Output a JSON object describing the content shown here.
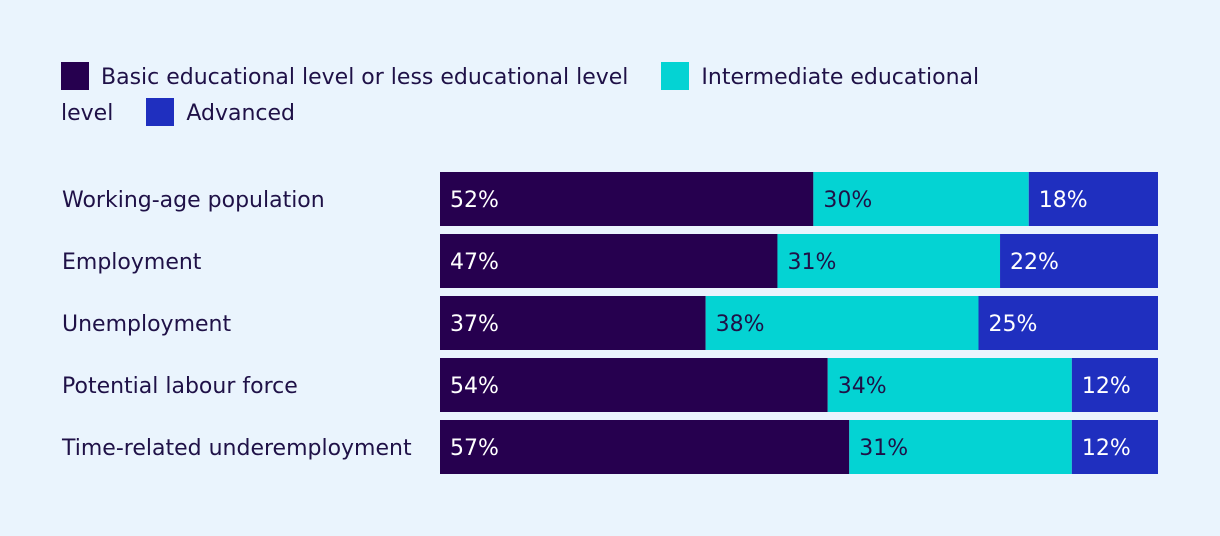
{
  "chart_data": {
    "type": "bar",
    "orientation": "horizontal",
    "stacked": true,
    "categories": [
      "Working-age population",
      "Employment",
      "Unemployment",
      "Potential labour force",
      "Time-related underemployment"
    ],
    "series": [
      {
        "name": "Basic educational level or less educational level",
        "color": "#26004f",
        "label_color": "#ffffff",
        "values": [
          52,
          47,
          37,
          54,
          57
        ]
      },
      {
        "name": "Intermediate educational level",
        "color": "#04d3d3",
        "label_color": "#1f1147",
        "values": [
          30,
          31,
          38,
          34,
          31
        ]
      },
      {
        "name": "Advanced",
        "color": "#1f2fbf",
        "label_color": "#ffffff",
        "values": [
          18,
          22,
          25,
          12,
          12
        ]
      }
    ],
    "value_suffix": "%",
    "xlim": [
      0,
      100
    ],
    "legend_position": "top-left",
    "grid": false
  }
}
